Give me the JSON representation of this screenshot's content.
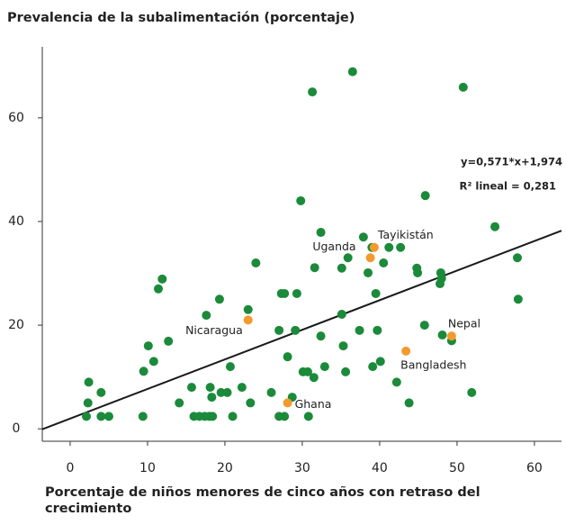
{
  "chart_data": {
    "type": "scatter",
    "title": "Prevalencia de la subalimentación (porcentaje)",
    "x_label": "Porcentaje de niños menores de cinco años con retraso del crecimiento",
    "xlim": [
      -3.6,
      63.5
    ],
    "ylim": [
      -2.4,
      73.7
    ],
    "xticks": [
      0,
      10,
      20,
      30,
      40,
      50,
      60
    ],
    "yticks": [
      0,
      20,
      40,
      60
    ],
    "trendline": {
      "slope": 0.571,
      "intercept": 1.974,
      "color": "#1a1a1a"
    },
    "annotations": [
      "y=0,571*x+1,974",
      "R² lineal = 0,281"
    ],
    "series": [
      {
        "color": "#1b8a3a",
        "x": [
          2.1,
          4.0,
          2.4,
          2.3,
          4.0,
          5.0,
          9.4,
          9.5,
          10.1,
          10.8,
          11.4,
          11.9,
          12.7,
          14.1,
          16.0,
          16.7,
          17.4,
          18.0,
          18.4,
          15.7,
          17.6,
          18.1,
          18.3,
          19.3,
          19.5,
          20.3,
          20.7,
          21.0,
          22.2,
          23.0,
          23.3,
          24.0,
          26.0,
          27.0,
          27.3,
          27.7,
          27.0,
          27.7,
          28.1,
          28.7,
          29.1,
          29.3,
          29.8,
          30.1,
          30.7,
          30.8,
          31.3,
          31.5,
          31.6,
          32.4,
          32.4,
          32.9,
          35.1,
          35.1,
          35.3,
          35.6,
          35.9,
          36.5,
          37.4,
          37.9,
          38.5,
          39.0,
          39.1,
          39.5,
          39.7,
          40.1,
          40.5,
          41.2,
          42.2,
          42.7,
          43.8,
          44.8,
          44.9,
          45.8,
          45.9,
          47.8,
          47.9,
          48.0,
          48.1,
          49.3,
          50.8,
          51.9,
          54.9,
          57.8,
          57.9
        ],
        "values": [
          2.4,
          2.4,
          9.0,
          5.0,
          7.0,
          2.4,
          2.4,
          11.1,
          16.0,
          13.0,
          27.0,
          28.9,
          16.9,
          5.0,
          2.4,
          2.4,
          2.4,
          2.4,
          2.4,
          8.0,
          21.9,
          8.0,
          6.1,
          25.0,
          7.0,
          7.0,
          12.0,
          2.4,
          8.0,
          23.0,
          5.0,
          32.0,
          7.0,
          19.0,
          26.1,
          26.1,
          2.4,
          2.4,
          13.9,
          6.1,
          19.0,
          26.1,
          44.0,
          11.0,
          11.0,
          2.4,
          65.0,
          9.9,
          31.1,
          37.9,
          17.9,
          12.0,
          22.1,
          31.0,
          16.0,
          11.0,
          33.0,
          68.9,
          19.0,
          37.0,
          30.1,
          35.0,
          12.0,
          26.1,
          19.0,
          13.0,
          32.0,
          35.0,
          9.0,
          35.0,
          5.0,
          31.0,
          30.1,
          20.0,
          45.0,
          28.0,
          30.1,
          29.0,
          18.1,
          17.0,
          65.9,
          7.0,
          39.0,
          33.0,
          25.0
        ]
      },
      {
        "color": "#f39a2e",
        "x": [
          23.0,
          28.1,
          38.8,
          39.3,
          43.4,
          49.3
        ],
        "values": [
          21.0,
          5.0,
          33.0,
          35.0,
          15.0,
          17.9
        ],
        "labels": [
          "Nicaragua",
          "Ghana",
          "Uganda",
          "Tayikistán",
          "Bangladesh",
          "Nepal"
        ]
      }
    ]
  }
}
